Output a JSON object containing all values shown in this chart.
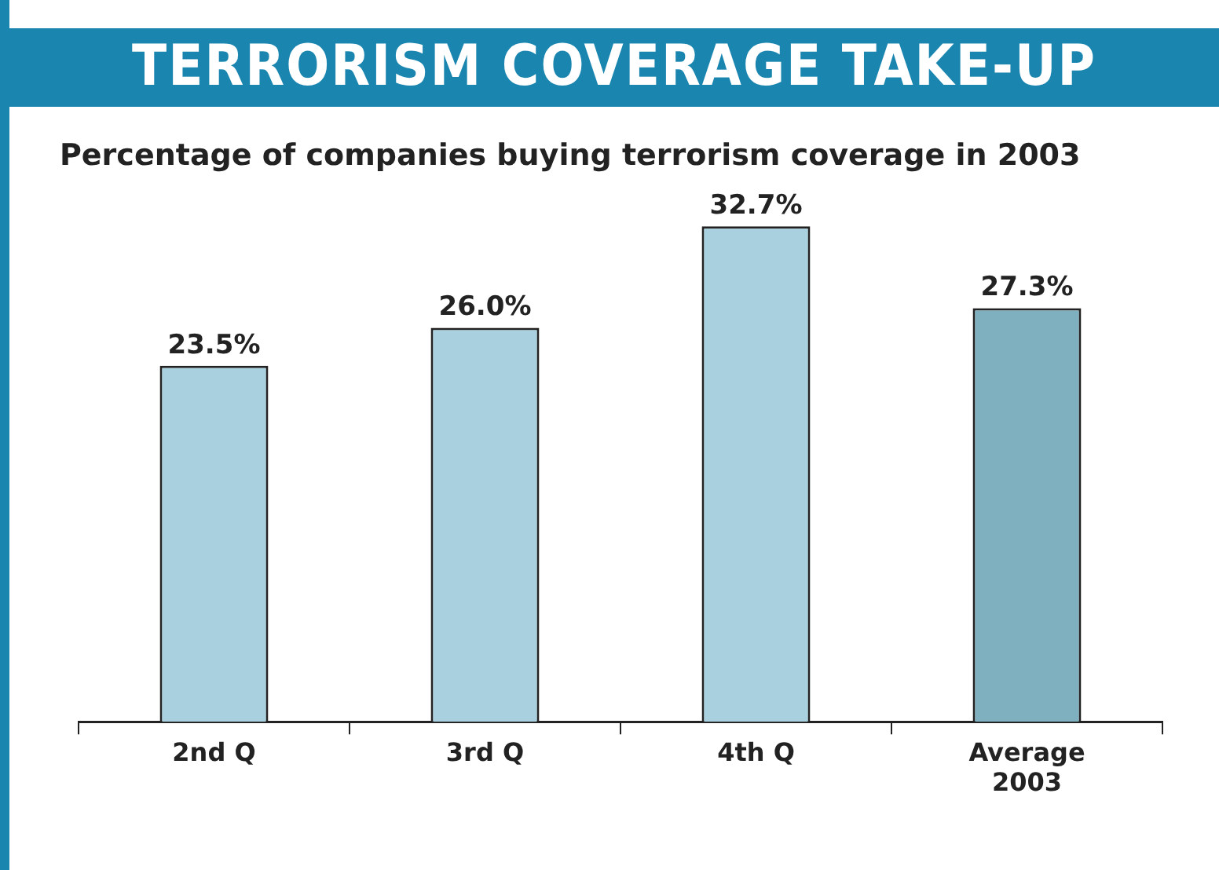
{
  "chart_data": {
    "type": "bar",
    "title": "TERRORISM COVERAGE TAKE-UP",
    "subtitle": "Percentage of companies buying terrorism coverage in 2003",
    "categories": [
      "2nd Q",
      "3rd Q",
      "4th Q",
      "Average 2003"
    ],
    "values": [
      23.5,
      26.0,
      32.7,
      27.3
    ],
    "colors": [
      "#a8d0de",
      "#a8d0de",
      "#a8d0de",
      "#7fb0c0"
    ],
    "value_labels": [
      "23.5%",
      "26.0%",
      "32.7%",
      "27.3%"
    ],
    "grid": false,
    "legend": false
  }
}
